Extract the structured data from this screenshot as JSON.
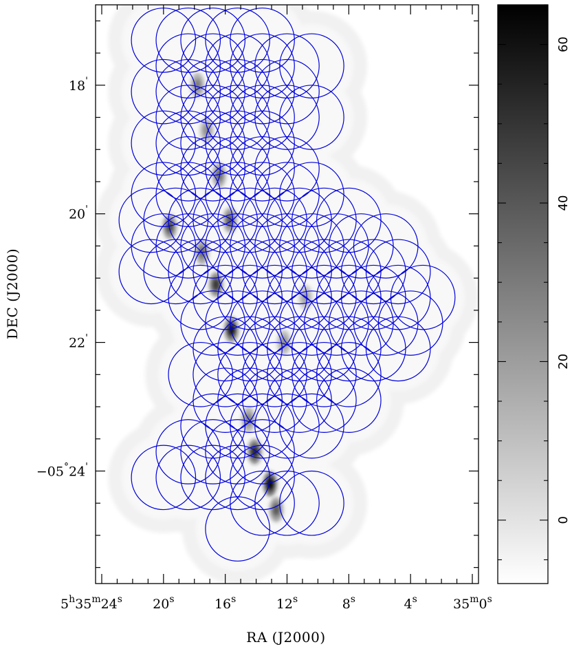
{
  "chart_data": [
    {
      "type": "heatmap",
      "title": "",
      "xlabel": "RA (J2000)",
      "ylabel": "DEC (J2000)",
      "colors": {
        "mosaic": "#0000dd",
        "background": "#ffffff",
        "frame": "#000000"
      },
      "x_ticks": [
        {
          "h": "5",
          "hs": "h",
          "m": "35",
          "ms": "m",
          "s": "24",
          "ss": "s"
        },
        {
          "s": "20",
          "ss": "s"
        },
        {
          "s": "16",
          "ss": "s"
        },
        {
          "s": "12",
          "ss": "s"
        },
        {
          "s": "8",
          "ss": "s"
        },
        {
          "s": "4",
          "ss": "s"
        },
        {
          "m": "35",
          "ms": "m",
          "s": "0",
          "ss": "s"
        }
      ],
      "x_tick_seconds": [
        24,
        20,
        16,
        12,
        8,
        4,
        0
      ],
      "y_ticks": [
        {
          "d": "",
          "ds": "",
          "m": "18",
          "ms": "'"
        },
        {
          "d": "",
          "ds": "",
          "m": "20",
          "ms": "'"
        },
        {
          "d": "",
          "ds": "",
          "m": "22",
          "ms": "'"
        },
        {
          "d": "−05",
          "ds": "°",
          "m": "24",
          "ms": "'"
        }
      ],
      "y_tick_arcmin": [
        18,
        20,
        22,
        24
      ],
      "x_range_seconds": [
        24.4,
        -0.4
      ],
      "y_range_arcmin": [
        16.75,
        25.75
      ],
      "pointing_rows_dec_arcmin": [
        17.3,
        17.7,
        18.1,
        18.5,
        18.9,
        19.3,
        19.7,
        20.1,
        20.5,
        20.9,
        21.3,
        21.7,
        22.1,
        22.5,
        22.9,
        23.3,
        23.7,
        24.1,
        24.5,
        24.9
      ],
      "pointing_row_ra_start_s": [
        20.0,
        18.4,
        20.0,
        18.4,
        20.0,
        18.4,
        20.0,
        20.8,
        20.0,
        20.8,
        17.6,
        16.8,
        16.0,
        17.6,
        16.0,
        16.8,
        18.4,
        20.0,
        13.6,
        15.2
      ],
      "pointing_row_counts": [
        5,
        6,
        6,
        6,
        5,
        5,
        7,
        9,
        10,
        11,
        10,
        9,
        8,
        7,
        6,
        5,
        4,
        5,
        3,
        1
      ],
      "beam_radius_arcmin": 0.5,
      "intensity_peaks": [
        {
          "ra_s": 17.8,
          "dec_arcmin": 18.0,
          "value": 30
        },
        {
          "ra_s": 17.2,
          "dec_arcmin": 18.7,
          "value": 25
        },
        {
          "ra_s": 16.4,
          "dec_arcmin": 19.4,
          "value": 35
        },
        {
          "ra_s": 15.7,
          "dec_arcmin": 20.1,
          "value": 40
        },
        {
          "ra_s": 19.6,
          "dec_arcmin": 20.2,
          "value": 45
        },
        {
          "ra_s": 17.5,
          "dec_arcmin": 20.6,
          "value": 35
        },
        {
          "ra_s": 16.6,
          "dec_arcmin": 21.1,
          "value": 50
        },
        {
          "ra_s": 15.6,
          "dec_arcmin": 21.8,
          "value": 60
        },
        {
          "ra_s": 14.5,
          "dec_arcmin": 23.2,
          "value": 30
        },
        {
          "ra_s": 14.1,
          "dec_arcmin": 23.7,
          "value": 55
        },
        {
          "ra_s": 13.1,
          "dec_arcmin": 24.2,
          "value": 65
        },
        {
          "ra_s": 12.7,
          "dec_arcmin": 24.6,
          "value": 40
        },
        {
          "ra_s": 12.2,
          "dec_arcmin": 22.0,
          "value": 25
        },
        {
          "ra_s": 10.8,
          "dec_arcmin": 21.3,
          "value": 20
        }
      ],
      "colorbar": {
        "range": [
          -8,
          65
        ],
        "ticks": [
          0,
          20,
          40,
          60
        ],
        "tick_labels": [
          "0",
          "20",
          "40",
          "60"
        ]
      },
      "grid": false,
      "legend": "none"
    }
  ]
}
